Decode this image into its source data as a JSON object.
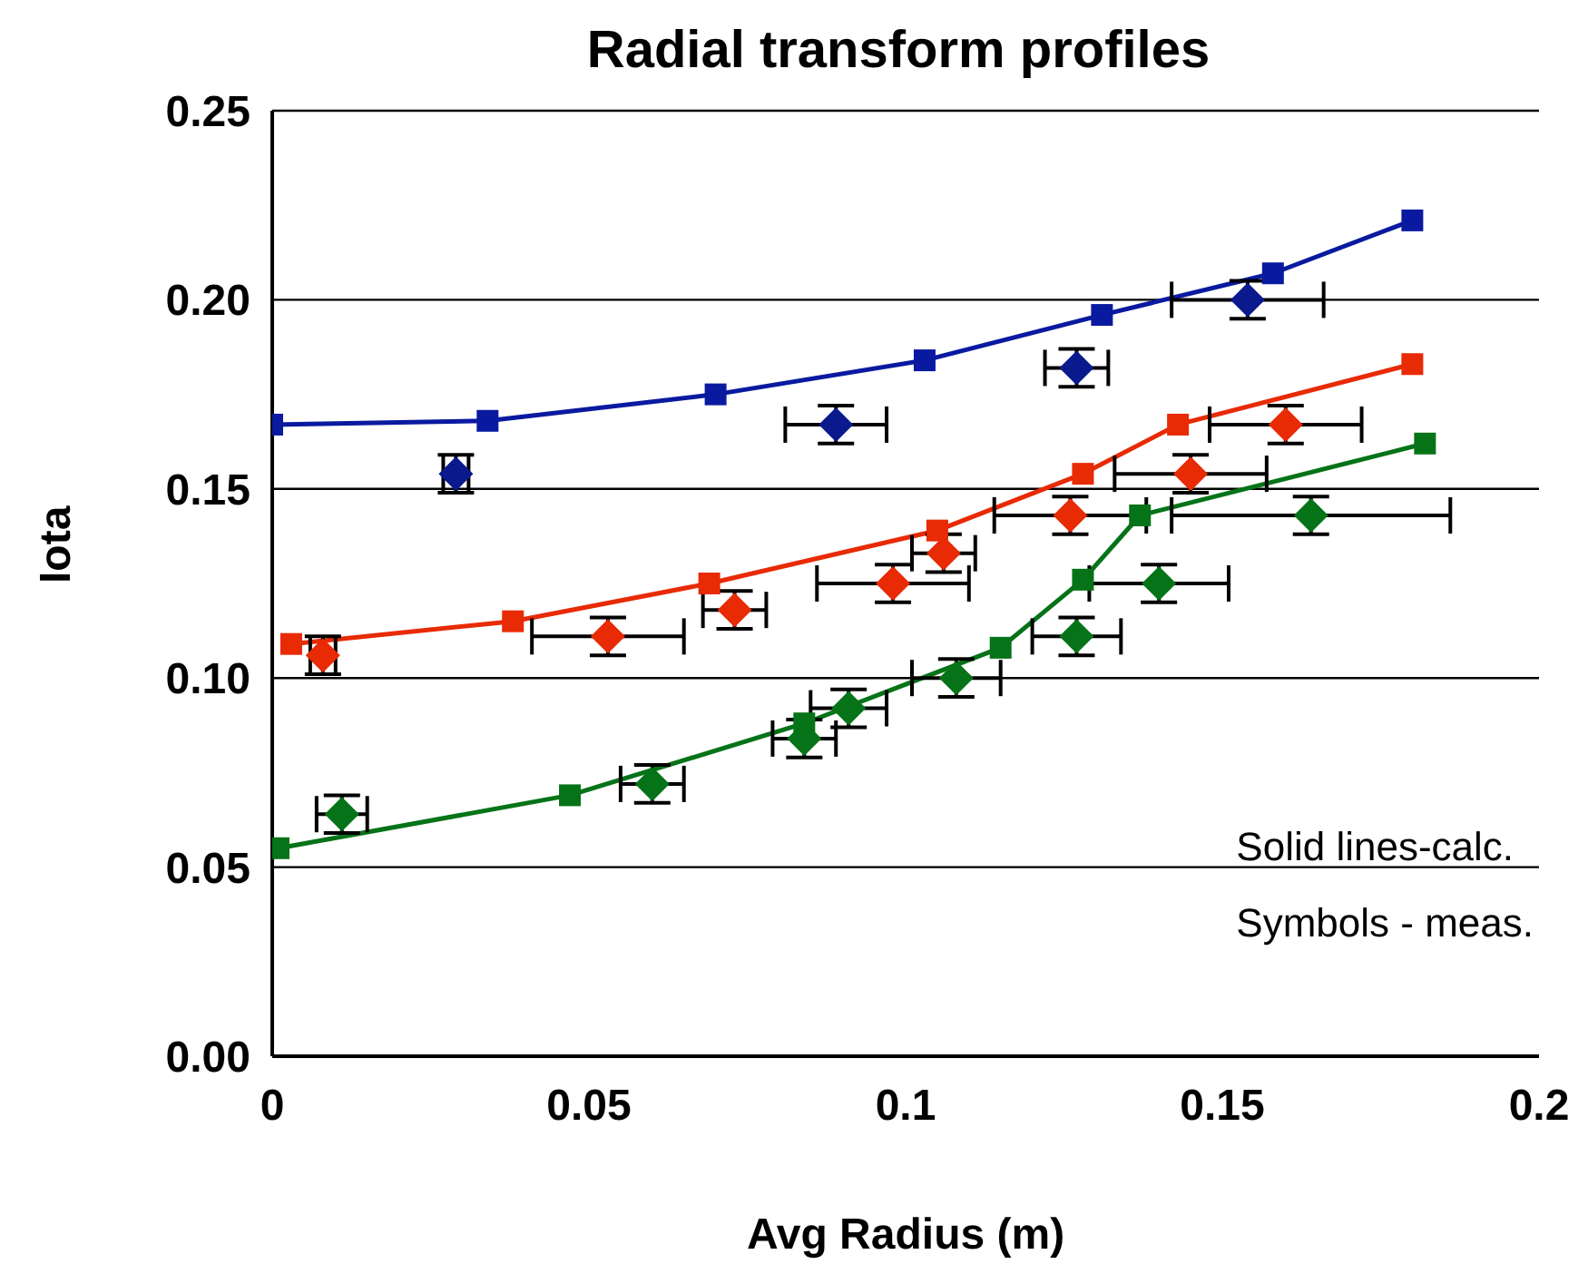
{
  "chart_data": {
    "type": "line",
    "title": "Radial transform profiles",
    "xlabel": "Avg Radius (m)",
    "ylabel": "Iota",
    "xlim": [
      0,
      0.2
    ],
    "xticks": [
      0,
      0.05,
      0.1,
      0.15,
      0.2
    ],
    "ylim": [
      0,
      0.25
    ],
    "yticks": [
      {
        "value": 0,
        "label": "0.00"
      },
      {
        "value": 0.05,
        "label": "0.05"
      },
      {
        "value": 0.1,
        "label": "0.10"
      },
      {
        "value": 0.15,
        "label": "0.15"
      },
      {
        "value": 0.2,
        "label": "0.20"
      },
      {
        "value": 0.25,
        "label": "0.25"
      }
    ],
    "grid": "y",
    "line_style": "solid",
    "annotations": [
      "Solid lines-calc.",
      "Symbols - meas."
    ],
    "series": [
      {
        "type": "line",
        "marker": "square",
        "color": "#0a1aa0",
        "x": [
          0,
          0.034,
          0.07,
          0.103,
          0.131,
          0.158,
          0.18
        ],
        "values": [
          0.167,
          0.168,
          0.175,
          0.184,
          0.196,
          0.207,
          0.221
        ]
      },
      {
        "type": "line",
        "marker": "square",
        "color": "#e82a05",
        "x": [
          0.003,
          0.038,
          0.069,
          0.105,
          0.128,
          0.143,
          0.18
        ],
        "values": [
          0.109,
          0.115,
          0.125,
          0.139,
          0.154,
          0.167,
          0.183
        ]
      },
      {
        "type": "line",
        "marker": "square",
        "color": "#067318",
        "x": [
          0.001,
          0.047,
          0.084,
          0.115,
          0.128,
          0.137,
          0.182
        ],
        "values": [
          0.055,
          0.069,
          0.088,
          0.108,
          0.126,
          0.143,
          0.162
        ]
      },
      {
        "type": "scatter",
        "marker": "diamond",
        "color": "#0a1a8c",
        "x": [
          0.029,
          0.089,
          0.127,
          0.154
        ],
        "values": [
          0.154,
          0.167,
          0.182,
          0.2
        ],
        "errors": [
          0.005,
          0.005,
          0.005,
          0.005
        ],
        "xerrors": [
          0.002,
          0.008,
          0.005,
          0.012
        ]
      },
      {
        "type": "scatter",
        "marker": "diamond",
        "color": "#e82a05",
        "x": [
          0.008,
          0.053,
          0.073,
          0.098,
          0.106,
          0.126,
          0.145,
          0.16
        ],
        "values": [
          0.106,
          0.111,
          0.118,
          0.125,
          0.133,
          0.143,
          0.154,
          0.167
        ],
        "errors": [
          0.005,
          0.005,
          0.005,
          0.005,
          0.005,
          0.005,
          0.005,
          0.005
        ],
        "xerrors": [
          0.002,
          0.012,
          0.005,
          0.012,
          0.005,
          0.012,
          0.012,
          0.012
        ]
      },
      {
        "type": "scatter",
        "marker": "diamond",
        "color": "#067318",
        "x": [
          0.011,
          0.06,
          0.084,
          0.091,
          0.108,
          0.127,
          0.14,
          0.164
        ],
        "values": [
          0.064,
          0.072,
          0.084,
          0.092,
          0.1,
          0.111,
          0.125,
          0.143
        ],
        "errors": [
          0.005,
          0.005,
          0.005,
          0.005,
          0.005,
          0.005,
          0.005,
          0.005
        ],
        "xerrors": [
          0.004,
          0.005,
          0.005,
          0.006,
          0.007,
          0.007,
          0.011,
          0.022
        ]
      }
    ]
  }
}
